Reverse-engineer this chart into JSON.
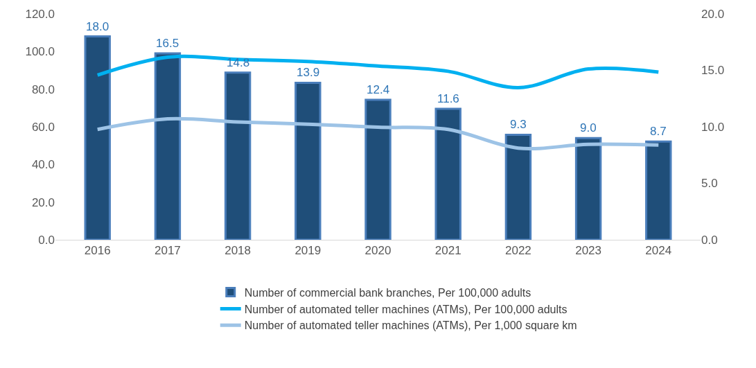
{
  "chart_data": {
    "type": "bar",
    "categories": [
      "2016",
      "2017",
      "2018",
      "2019",
      "2020",
      "2021",
      "2022",
      "2023",
      "2024"
    ],
    "series": [
      {
        "name": "Number of commercial bank branches, Per 100,000 adults",
        "axis": "y2",
        "color": "#1f4e79",
        "values": [
          18.0,
          16.5,
          14.8,
          13.9,
          12.4,
          11.6,
          9.3,
          9.0,
          8.7
        ],
        "value_labels": [
          "18.0",
          "16.5",
          "14.8",
          "13.9",
          "12.4",
          "11.6",
          "9.3",
          "9.0",
          "8.7"
        ]
      },
      {
        "name": "Number of automated teller machines (ATMs), Per 100,000 adults",
        "type": "line",
        "color": "#00b0f0",
        "values": [
          87.5,
          97.0,
          95.8,
          94.7,
          92.3,
          89.5,
          80.8,
          90.7,
          89.1
        ]
      },
      {
        "name": "Number of automated teller machines (ATMs), Per 1,000 square km",
        "type": "line",
        "color": "#9dc3e6",
        "values": [
          58.6,
          64.2,
          62.6,
          61.4,
          59.8,
          58.6,
          48.7,
          50.7,
          50.3
        ]
      }
    ],
    "ylim": [
      0,
      120
    ],
    "yticks": [
      {
        "value": 0,
        "label": "0.0"
      },
      {
        "value": 20,
        "label": "20.0"
      },
      {
        "value": 40,
        "label": "40.0"
      },
      {
        "value": 60,
        "label": "60.0"
      },
      {
        "value": 80,
        "label": "80.0"
      },
      {
        "value": 100,
        "label": "100.0"
      },
      {
        "value": 120,
        "label": "120.0"
      }
    ],
    "y2lim": [
      0,
      20
    ],
    "y2ticks": [
      {
        "value": 0,
        "label": "0.0"
      },
      {
        "value": 5,
        "label": "5.0"
      },
      {
        "value": 10,
        "label": "10.0"
      },
      {
        "value": 15,
        "label": "15.0"
      },
      {
        "value": 20,
        "label": "20.0"
      }
    ],
    "legend": "bottom",
    "marker": "none",
    "line_style": "solid"
  }
}
